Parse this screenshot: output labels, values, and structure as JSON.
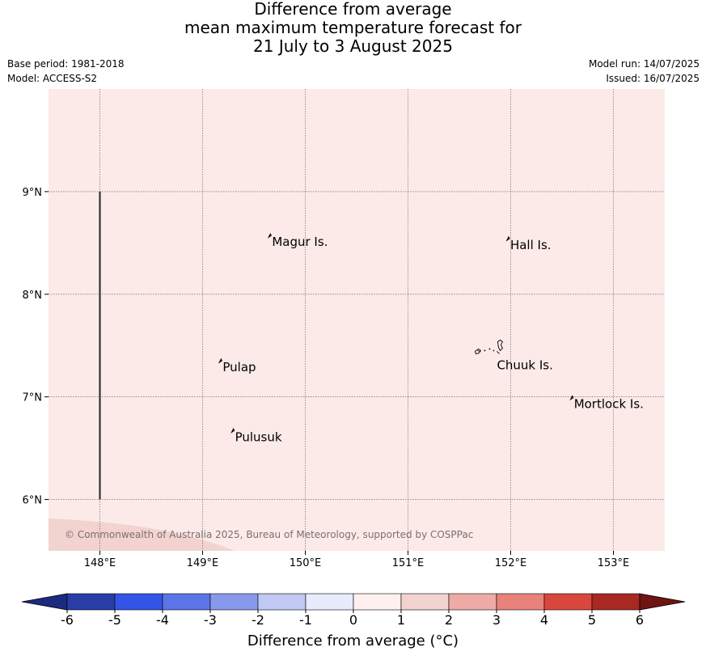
{
  "title": {
    "line1": "Difference from average",
    "line2": "mean maximum temperature forecast for",
    "line3": "21 July to 3 August 2025"
  },
  "meta": {
    "base_period": "Base period: 1981-2018",
    "model": "Model: ACCESS-S2",
    "model_run": "Model run: 14/07/2025",
    "issued": "Issued: 16/07/2025"
  },
  "map": {
    "lon_range": [
      147.5,
      153.5
    ],
    "lat_range": [
      5.5,
      10.0
    ],
    "lon_ticks": [
      {
        "value": 148,
        "label": "148°E"
      },
      {
        "value": 149,
        "label": "149°E"
      },
      {
        "value": 150,
        "label": "150°E"
      },
      {
        "value": 151,
        "label": "151°E"
      },
      {
        "value": 152,
        "label": "152°E"
      },
      {
        "value": 153,
        "label": "153°E"
      }
    ],
    "lat_ticks": [
      {
        "value": 9,
        "label": "9°N"
      },
      {
        "value": 8,
        "label": "8°N"
      },
      {
        "value": 7,
        "label": "7°N"
      },
      {
        "value": 6,
        "label": "6°N"
      }
    ],
    "background_color": "#fbeae8",
    "corner_band_color": "#f2d3d0",
    "grid": true,
    "boundary_line": {
      "lon": 148.0,
      "lat_from": 6.0,
      "lat_to": 9.0
    },
    "places": [
      {
        "name": "Magur Is.",
        "lon": 149.66,
        "lat": 8.58
      },
      {
        "name": "Hall Is.",
        "lon": 151.98,
        "lat": 8.55
      },
      {
        "name": "Pulap",
        "lon": 149.18,
        "lat": 7.36
      },
      {
        "name": "Chuuk Is.",
        "lon": 151.85,
        "lat": 7.38
      },
      {
        "name": "Mortlock Is.",
        "lon": 152.6,
        "lat": 7.0
      },
      {
        "name": "Pulusuk",
        "lon": 149.3,
        "lat": 6.68
      }
    ],
    "copyright": "© Commonwealth of Australia 2025, Bureau of Meteorology, supported by COSPPac"
  },
  "colorbar": {
    "label": "Difference from average (°C)",
    "ticks": [
      "-6",
      "-5",
      "-4",
      "-3",
      "-2",
      "-1",
      "0",
      "1",
      "2",
      "3",
      "4",
      "5",
      "6"
    ],
    "colors": [
      "#2a3da6",
      "#3355e6",
      "#5b74e6",
      "#8899ec",
      "#c0c8f3",
      "#e8ebfb",
      "#fdf0ee",
      "#f2d3d0",
      "#eeaba6",
      "#e8827b",
      "#d9463e",
      "#a82824"
    ],
    "under_color": "#1c2b80",
    "over_color": "#6e1412"
  }
}
